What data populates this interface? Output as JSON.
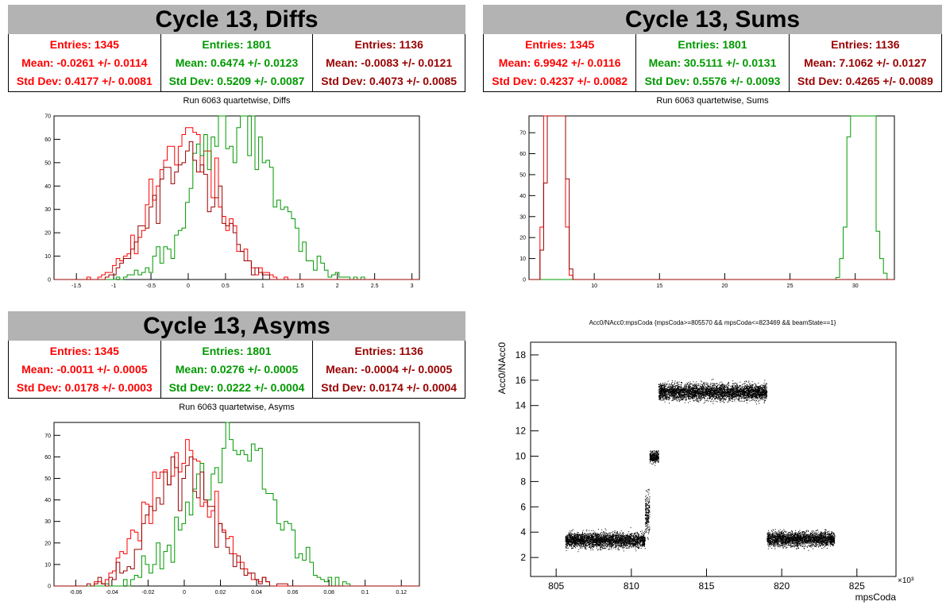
{
  "colors": {
    "red": "#ff0000",
    "green": "#009900",
    "darkred": "#990000"
  },
  "panels": {
    "diffs": {
      "title": "Cycle 13, Diffs",
      "subtitle": "Run 6063 quartetwise, Diffs",
      "stats": [
        {
          "entries": "Entries: 1345",
          "mean": "Mean: -0.0261 +/- 0.0114",
          "std": "Std Dev: 0.4177 +/- 0.0081"
        },
        {
          "entries": "Entries: 1801",
          "mean": "Mean: 0.6474 +/- 0.0123",
          "std": "Std Dev: 0.5209 +/- 0.0087"
        },
        {
          "entries": "Entries: 1136",
          "mean": "Mean: -0.0083 +/- 0.0121",
          "std": "Std Dev: 0.4073 +/- 0.0085"
        }
      ]
    },
    "sums": {
      "title": "Cycle 13, Sums",
      "subtitle": "Run 6063 quartetwise, Sums",
      "stats": [
        {
          "entries": "Entries: 1345",
          "mean": "Mean: 6.9942 +/- 0.0116",
          "std": "Std Dev: 0.4237 +/- 0.0082"
        },
        {
          "entries": "Entries: 1801",
          "mean": "Mean: 30.5111 +/- 0.0131",
          "std": "Std Dev: 0.5576 +/- 0.0093"
        },
        {
          "entries": "Entries: 1136",
          "mean": "Mean: 7.1062 +/- 0.0127",
          "std": "Std Dev: 0.4265 +/- 0.0089"
        }
      ]
    },
    "asyms": {
      "title": "Cycle 13, Asyms",
      "subtitle": "Run 6063 quartetwise, Asyms",
      "stats": [
        {
          "entries": "Entries: 1345",
          "mean": "Mean: -0.0011 +/- 0.0005",
          "std": "Std Dev: 0.0178 +/- 0.0003"
        },
        {
          "entries": "Entries: 1801",
          "mean": "Mean: 0.0276 +/- 0.0005",
          "std": "Std Dev: 0.0222 +/- 0.0004"
        },
        {
          "entries": "Entries: 1136",
          "mean": "Mean: -0.0004 +/- 0.0005",
          "std": "Std Dev: 0.0174 +/- 0.0004"
        }
      ]
    },
    "scatter": {
      "title": "Acc0/NAcc0:mpsCoda {mpsCoda>=805570 && mpsCoda<=823469 && beamState==1}"
    }
  },
  "chart_data": [
    {
      "type": "histogram",
      "title": "Run 6063 quartetwise, Diffs",
      "xlim": [
        -1.8,
        3.1
      ],
      "ylim": [
        0,
        70
      ],
      "xticks": [
        "-1.5",
        "-1",
        "-0.5",
        "0",
        "0.5",
        "1",
        "1.5",
        "2",
        "2.5",
        "3"
      ],
      "yticks": [
        "0",
        "10",
        "20",
        "30",
        "40",
        "50",
        "60",
        "70"
      ],
      "series": [
        {
          "color": "red",
          "entries": 1345,
          "mean": -0.0261,
          "std": 0.4177
        },
        {
          "color": "green",
          "entries": 1801,
          "mean": 0.6474,
          "std": 0.5209
        },
        {
          "color": "darkred",
          "entries": 1136,
          "mean": -0.0083,
          "std": 0.4073
        }
      ]
    },
    {
      "type": "histogram",
      "title": "Run 6063 quartetwise, Sums",
      "xlim": [
        5,
        33
      ],
      "ylim": [
        0,
        78
      ],
      "xticks": [
        "10",
        "15",
        "20",
        "25",
        "30"
      ],
      "yticks": [
        "0",
        "10",
        "20",
        "30",
        "40",
        "50",
        "60",
        "70"
      ],
      "series": [
        {
          "color": "red",
          "entries": 1345,
          "mean": 6.9942,
          "std": 0.4237
        },
        {
          "color": "green",
          "entries": 1801,
          "mean": 30.5111,
          "std": 0.5576
        },
        {
          "color": "darkred",
          "entries": 1136,
          "mean": 7.1062,
          "std": 0.4265
        }
      ]
    },
    {
      "type": "histogram",
      "title": "Run 6063 quartetwise, Asyms",
      "xlim": [
        -0.072,
        0.13
      ],
      "ylim": [
        0,
        76
      ],
      "xticks": [
        "-0.06",
        "-0.04",
        "-0.02",
        "0",
        "0.02",
        "0.04",
        "0.06",
        "0.08",
        "0.1",
        "0.12"
      ],
      "yticks": [
        "0",
        "10",
        "20",
        "30",
        "40",
        "50",
        "60",
        "70"
      ],
      "series": [
        {
          "color": "red",
          "entries": 1345,
          "mean": -0.0011,
          "std": 0.0178
        },
        {
          "color": "green",
          "entries": 1801,
          "mean": 0.0276,
          "std": 0.0222
        },
        {
          "color": "darkred",
          "entries": 1136,
          "mean": -0.0004,
          "std": 0.0174
        }
      ]
    },
    {
      "type": "scatter",
      "title": "Acc0/NAcc0:mpsCoda {mpsCoda>=805570 && mpsCoda<=823469 && beamState==1}",
      "xlabel": "mpsCoda",
      "ylabel": "Acc0/NAcc0",
      "xlim": [
        803.3,
        827.6
      ],
      "ylim": [
        0.5,
        19
      ],
      "xticks": [
        "805",
        "810",
        "815",
        "820",
        "825"
      ],
      "yticks": [
        "2",
        "4",
        "6",
        "8",
        "10",
        "12",
        "14",
        "16",
        "18"
      ],
      "xexponent": "×10³",
      "clusters": [
        {
          "x": [
            805.6,
            810.9
          ],
          "y_mean": 3.4,
          "y_spread": 0.9
        },
        {
          "x": [
            810.9,
            811.2
          ],
          "y_mean": 5.5,
          "y_spread": 2.5
        },
        {
          "x": [
            811.2,
            811.8
          ],
          "y_mean": 10.0,
          "y_spread": 0.7
        },
        {
          "x": [
            811.8,
            819.0
          ],
          "y_mean": 15.1,
          "y_spread": 1.0
        },
        {
          "x": [
            819.0,
            823.5
          ],
          "y_mean": 3.5,
          "y_spread": 0.9
        }
      ]
    }
  ]
}
